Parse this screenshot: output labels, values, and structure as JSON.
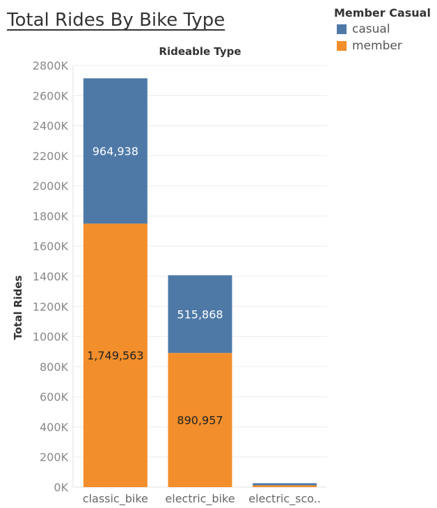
{
  "title": "Total Rides By Bike Type",
  "legend": {
    "title": "Member Casual",
    "items": [
      {
        "label": "casual",
        "color": "#4e79a7"
      },
      {
        "label": "member",
        "color": "#f28e2b"
      }
    ]
  },
  "chart_data": {
    "type": "bar",
    "stacked": true,
    "column_header": "Rideable Type",
    "xlabel": "",
    "ylabel": "Total Rides",
    "categories": [
      "classic_bike",
      "electric_bike",
      "electric_sco.."
    ],
    "series": [
      {
        "name": "member",
        "color": "#f28e2b",
        "values": [
          1749563,
          890957,
          12000
        ],
        "labels": [
          "1,749,563",
          "890,957",
          ""
        ]
      },
      {
        "name": "casual",
        "color": "#4e79a7",
        "values": [
          964938,
          515868,
          14000
        ],
        "labels": [
          "964,938",
          "515,868",
          ""
        ]
      }
    ],
    "ylim": [
      0,
      2800000
    ],
    "yticks": [
      0,
      200000,
      400000,
      600000,
      800000,
      1000000,
      1200000,
      1400000,
      1600000,
      1800000,
      2000000,
      2200000,
      2400000,
      2600000,
      2800000
    ],
    "ytick_labels": [
      "0K",
      "200K",
      "400K",
      "600K",
      "800K",
      "1000K",
      "1200K",
      "1400K",
      "1600K",
      "1800K",
      "2000K",
      "2200K",
      "2400K",
      "2600K",
      "2800K"
    ],
    "grid": true,
    "legend_position": "top-right"
  }
}
